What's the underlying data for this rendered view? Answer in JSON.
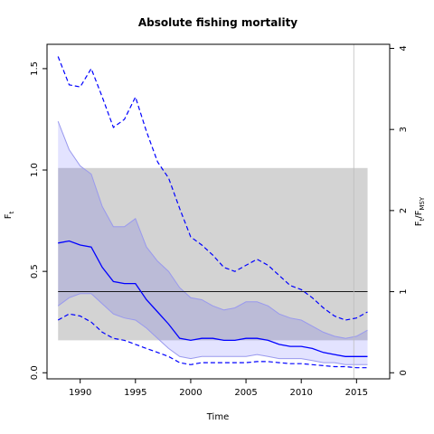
{
  "chart_data": {
    "type": "line",
    "title": "Absolute fishing mortality",
    "xlabel": "Time",
    "ylabel": {
      "main": "F",
      "sub": "t"
    },
    "ylabel_right": {
      "main": "F",
      "sub1": "t",
      "sep": "/F",
      "sub2": "MSY"
    },
    "xlim": [
      1987,
      2018
    ],
    "ylim": [
      -0.03,
      1.62
    ],
    "xticks": [
      1990,
      1995,
      2000,
      2005,
      2010,
      2015
    ],
    "yticks": [
      0.0,
      0.5,
      1.0,
      1.5
    ],
    "yticks_right": [
      0,
      1,
      2,
      3,
      4
    ],
    "fmsy": 0.4,
    "vline_x": 2014.75,
    "msy_band": {
      "x": [
        1988,
        2016
      ],
      "y": [
        0.16,
        1.01
      ],
      "color": "#d3d3d3"
    },
    "colors": {
      "estimate": "#0000ff",
      "ci_fill": "#0000ff",
      "ci_alpha": 0.11,
      "ref_line": "#000000",
      "vline": "#bebebe"
    },
    "x": [
      1988,
      1989,
      1990,
      1991,
      1992,
      1993,
      1994,
      1995,
      1996,
      1997,
      1998,
      1999,
      2000,
      2001,
      2002,
      2003,
      2004,
      2005,
      2006,
      2007,
      2008,
      2009,
      2010,
      2011,
      2012,
      2013,
      2014,
      2015,
      2016
    ],
    "series": [
      {
        "role": "estimate",
        "style": "solid",
        "values": [
          0.64,
          0.65,
          0.63,
          0.62,
          0.52,
          0.45,
          0.44,
          0.44,
          0.36,
          0.3,
          0.24,
          0.17,
          0.16,
          0.17,
          0.17,
          0.16,
          0.16,
          0.17,
          0.17,
          0.16,
          0.14,
          0.13,
          0.13,
          0.12,
          0.1,
          0.09,
          0.08,
          0.08,
          0.08
        ]
      },
      {
        "role": "ci-upper",
        "style": "solid",
        "values": [
          1.24,
          1.1,
          1.02,
          0.98,
          0.82,
          0.72,
          0.72,
          0.76,
          0.62,
          0.55,
          0.5,
          0.42,
          0.37,
          0.36,
          0.33,
          0.31,
          0.32,
          0.35,
          0.35,
          0.33,
          0.29,
          0.27,
          0.26,
          0.23,
          0.2,
          0.18,
          0.17,
          0.18,
          0.21
        ]
      },
      {
        "role": "ci-lower",
        "style": "solid",
        "values": [
          0.33,
          0.37,
          0.39,
          0.39,
          0.34,
          0.29,
          0.27,
          0.26,
          0.22,
          0.17,
          0.12,
          0.08,
          0.07,
          0.08,
          0.08,
          0.08,
          0.08,
          0.08,
          0.09,
          0.08,
          0.07,
          0.07,
          0.07,
          0.06,
          0.05,
          0.05,
          0.04,
          0.04,
          0.04
        ]
      },
      {
        "role": "pred-upper",
        "style": "dashed",
        "values": [
          1.56,
          1.42,
          1.41,
          1.5,
          1.36,
          1.21,
          1.25,
          1.36,
          1.19,
          1.04,
          0.96,
          0.81,
          0.67,
          0.63,
          0.58,
          0.52,
          0.5,
          0.53,
          0.56,
          0.53,
          0.48,
          0.43,
          0.41,
          0.37,
          0.32,
          0.28,
          0.26,
          0.27,
          0.3
        ]
      },
      {
        "role": "pred-lower",
        "style": "dashed",
        "values": [
          0.26,
          0.29,
          0.28,
          0.25,
          0.2,
          0.17,
          0.16,
          0.14,
          0.12,
          0.1,
          0.08,
          0.05,
          0.04,
          0.05,
          0.05,
          0.05,
          0.05,
          0.05,
          0.055,
          0.055,
          0.05,
          0.045,
          0.045,
          0.04,
          0.035,
          0.03,
          0.03,
          0.025,
          0.025
        ]
      }
    ]
  }
}
